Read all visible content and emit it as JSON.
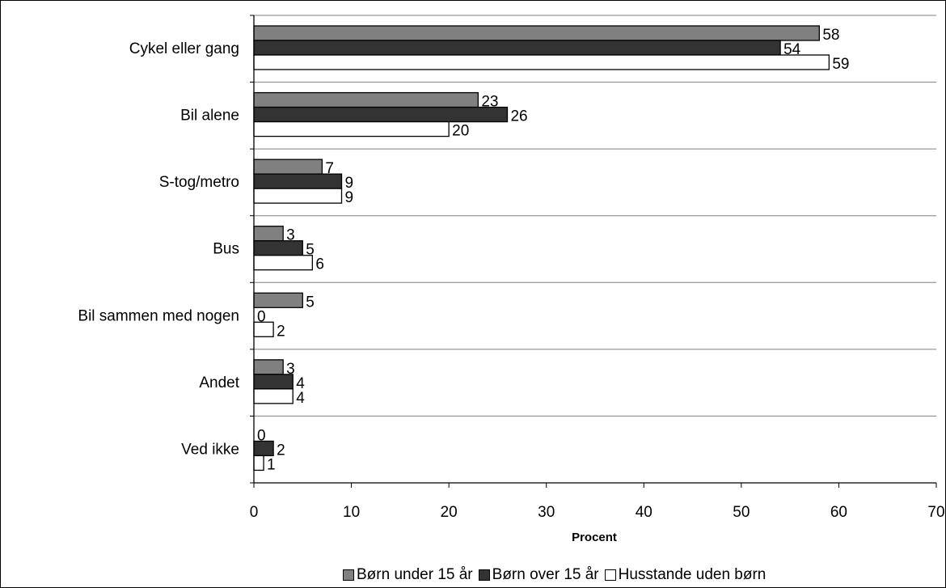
{
  "chart_data": {
    "type": "bar",
    "orientation": "horizontal",
    "categories": [
      "Cykel eller gang",
      "Bil alene",
      "S-tog/metro",
      "Bus",
      "Bil sammen med nogen",
      "Andet",
      "Ved ikke"
    ],
    "series": [
      {
        "name": "Børn under 15 år",
        "color": "#808080",
        "values": [
          58,
          23,
          7,
          3,
          5,
          3,
          0
        ]
      },
      {
        "name": "Børn over 15 år",
        "color": "#333333",
        "values": [
          54,
          26,
          9,
          5,
          0,
          4,
          2
        ]
      },
      {
        "name": "Husstande uden børn",
        "color": "#ffffff",
        "values": [
          59,
          20,
          9,
          6,
          2,
          4,
          1
        ]
      }
    ],
    "xlabel": "Procent",
    "xlim": [
      0,
      70
    ],
    "xticks": [
      "0",
      "10",
      "20",
      "30",
      "40",
      "50",
      "60",
      "70"
    ],
    "grid": "horizontal category separators",
    "legend_position": "bottom",
    "data_labels": true
  }
}
